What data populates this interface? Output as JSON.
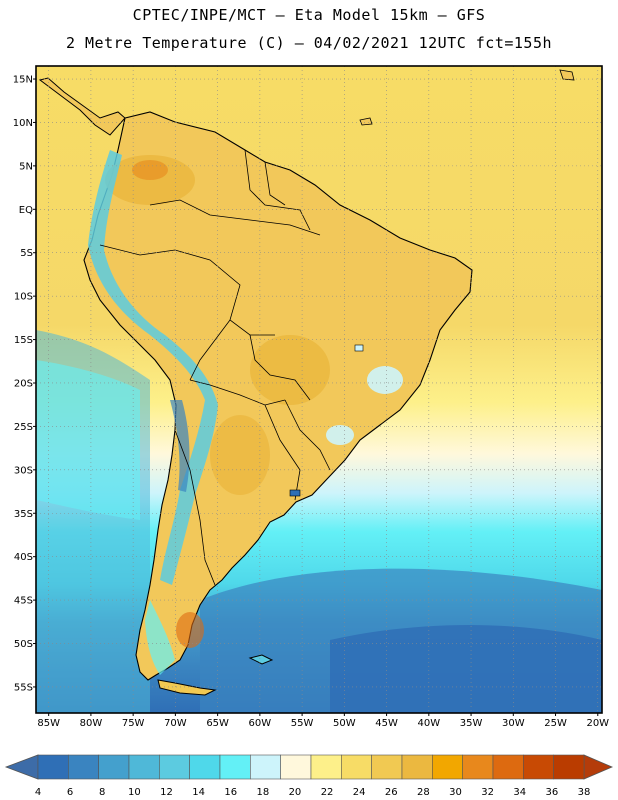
{
  "header": {
    "line1": "CPTEC/INPE/MCT –  Eta Model 15km – GFS",
    "line2": "2 Metre Temperature (C) – 04/02/2021 12UTC fct=155h"
  },
  "map": {
    "region": "South America",
    "lat_labels": [
      "15N",
      "10N",
      "5N",
      "EQ",
      "5S",
      "10S",
      "15S",
      "20S",
      "25S",
      "30S",
      "35S",
      "40S",
      "45S",
      "50S",
      "55S"
    ],
    "lon_labels": [
      "85W",
      "80W",
      "75W",
      "70W",
      "65W",
      "60W",
      "55W",
      "50W",
      "45W",
      "40W",
      "35W",
      "30W",
      "25W",
      "20W"
    ],
    "lat_range": [
      -58,
      16.5
    ],
    "lon_range": [
      -86.5,
      -19.5
    ]
  },
  "colorbar": {
    "labels": [
      "4",
      "6",
      "8",
      "10",
      "12",
      "14",
      "16",
      "18",
      "20",
      "22",
      "24",
      "26",
      "28",
      "30",
      "32",
      "34",
      "36",
      "38"
    ],
    "colors": [
      "#2f6fb6",
      "#3a84c0",
      "#44a0cd",
      "#4fb8d8",
      "#5ccbe0",
      "#4fd8ea",
      "#63f0f6",
      "#cdf4fb",
      "#fff8dc",
      "#fdf08a",
      "#f7dc66",
      "#f1c952",
      "#ebb840",
      "#f2a700",
      "#e8881c",
      "#dd6a10",
      "#c84a04",
      "#ba3c00"
    ],
    "low_arrow_color": "#3d6ca8",
    "high_arrow_color": "#b43c0a"
  }
}
